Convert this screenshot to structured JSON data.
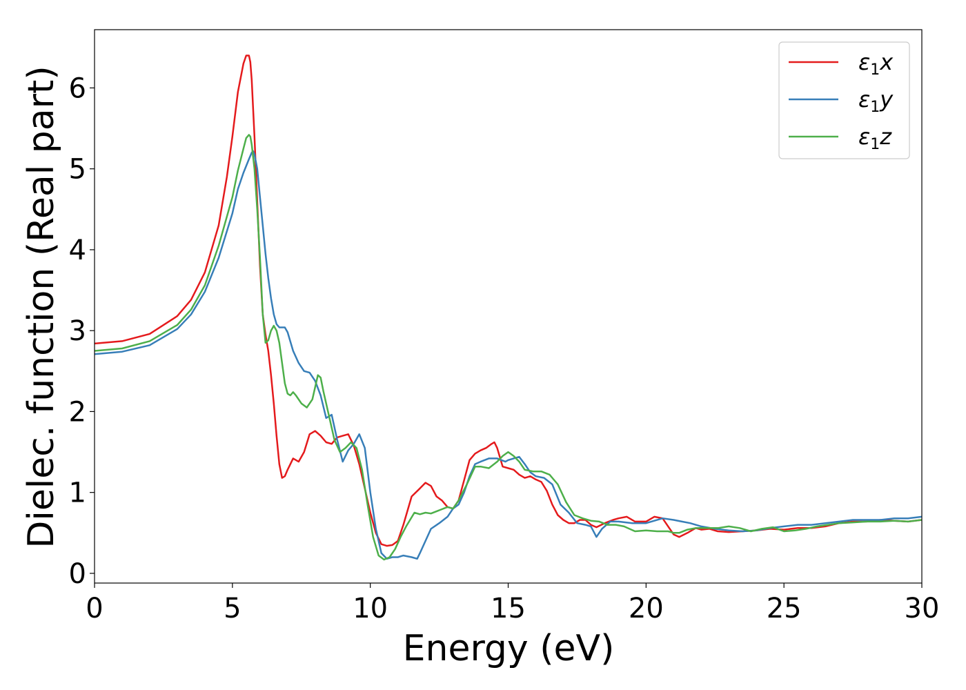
{
  "chart_data": {
    "type": "line",
    "title": "",
    "xlabel": "Energy (eV)",
    "ylabel": "Dielec. function (Real part)",
    "xlim": [
      0,
      30
    ],
    "ylim": [
      -0.12,
      6.72
    ],
    "xticks": [
      0,
      5,
      10,
      15,
      20,
      25,
      30
    ],
    "yticks": [
      0,
      1,
      2,
      3,
      4,
      5,
      6
    ],
    "grid": false,
    "legend_position": "top-right",
    "series": [
      {
        "name": "ε1x",
        "legend": {
          "base": "ε",
          "sub": "1",
          "var": "x"
        },
        "color": "#e41a1c",
        "x": [
          0,
          1,
          2,
          3,
          3.5,
          4,
          4.5,
          4.8,
          5.0,
          5.2,
          5.4,
          5.5,
          5.6,
          5.65,
          5.7,
          5.8,
          5.9,
          6.0,
          6.1,
          6.2,
          6.3,
          6.4,
          6.5,
          6.6,
          6.7,
          6.8,
          6.9,
          7.0,
          7.2,
          7.4,
          7.6,
          7.8,
          8.0,
          8.2,
          8.4,
          8.6,
          8.8,
          9.0,
          9.2,
          9.4,
          9.6,
          9.8,
          10.0,
          10.2,
          10.4,
          10.6,
          10.8,
          11.0,
          11.2,
          11.5,
          11.8,
          12.0,
          12.2,
          12.4,
          12.6,
          12.8,
          13.0,
          13.2,
          13.4,
          13.6,
          13.8,
          14.0,
          14.2,
          14.4,
          14.5,
          14.6,
          14.8,
          15.0,
          15.2,
          15.4,
          15.6,
          15.8,
          16.0,
          16.2,
          16.4,
          16.6,
          16.8,
          17.0,
          17.2,
          17.4,
          17.6,
          17.8,
          18.0,
          18.2,
          18.5,
          18.8,
          19.0,
          19.3,
          19.6,
          20.0,
          20.3,
          20.6,
          20.8,
          21.0,
          21.2,
          21.5,
          21.8,
          22.0,
          22.3,
          22.6,
          23.0,
          23.5,
          24.0,
          24.5,
          25.0,
          25.5,
          26.0,
          26.5,
          27.0,
          27.5,
          28.0,
          28.5,
          29.0,
          29.5,
          30.0
        ],
        "y": [
          2.84,
          2.87,
          2.96,
          3.18,
          3.38,
          3.72,
          4.3,
          4.9,
          5.4,
          5.95,
          6.3,
          6.4,
          6.4,
          6.32,
          6.1,
          5.4,
          4.6,
          3.8,
          3.2,
          2.95,
          2.75,
          2.45,
          2.1,
          1.7,
          1.35,
          1.18,
          1.2,
          1.28,
          1.42,
          1.38,
          1.5,
          1.72,
          1.76,
          1.7,
          1.62,
          1.6,
          1.68,
          1.7,
          1.72,
          1.58,
          1.35,
          1.05,
          0.75,
          0.5,
          0.36,
          0.34,
          0.35,
          0.4,
          0.6,
          0.95,
          1.05,
          1.12,
          1.08,
          0.95,
          0.9,
          0.82,
          0.8,
          0.9,
          1.15,
          1.4,
          1.48,
          1.52,
          1.55,
          1.6,
          1.62,
          1.55,
          1.32,
          1.3,
          1.28,
          1.22,
          1.18,
          1.2,
          1.16,
          1.13,
          1.02,
          0.85,
          0.72,
          0.66,
          0.62,
          0.62,
          0.66,
          0.66,
          0.6,
          0.57,
          0.62,
          0.66,
          0.68,
          0.7,
          0.64,
          0.64,
          0.7,
          0.68,
          0.58,
          0.48,
          0.45,
          0.5,
          0.56,
          0.54,
          0.55,
          0.52,
          0.51,
          0.52,
          0.53,
          0.55,
          0.54,
          0.56,
          0.56,
          0.58,
          0.62,
          0.64,
          0.64,
          0.66,
          0.65,
          0.64,
          0.66
        ]
      },
      {
        "name": "ε1y",
        "legend": {
          "base": "ε",
          "sub": "1",
          "var": "y"
        },
        "color": "#377eb8",
        "x": [
          0,
          1,
          2,
          3,
          3.5,
          4,
          4.5,
          5.0,
          5.2,
          5.4,
          5.6,
          5.7,
          5.75,
          5.8,
          5.9,
          6.0,
          6.1,
          6.2,
          6.3,
          6.4,
          6.5,
          6.6,
          6.7,
          6.8,
          6.9,
          7.0,
          7.2,
          7.4,
          7.6,
          7.8,
          8.0,
          8.2,
          8.4,
          8.6,
          8.8,
          9.0,
          9.2,
          9.4,
          9.6,
          9.8,
          10.0,
          10.2,
          10.4,
          10.6,
          10.8,
          11.0,
          11.2,
          11.5,
          11.7,
          11.8,
          12.0,
          12.2,
          12.5,
          12.8,
          13.0,
          13.2,
          13.4,
          13.6,
          13.8,
          14.0,
          14.3,
          14.6,
          14.9,
          15.0,
          15.2,
          15.4,
          15.6,
          15.8,
          16.0,
          16.3,
          16.6,
          16.9,
          17.2,
          17.5,
          17.8,
          18.0,
          18.2,
          18.4,
          18.7,
          19.0,
          19.5,
          20.0,
          20.3,
          20.6,
          21.0,
          21.3,
          21.6,
          22.0,
          22.5,
          23.0,
          23.5,
          24.0,
          24.5,
          25.0,
          25.5,
          26.0,
          26.5,
          27.0,
          27.5,
          28.0,
          28.5,
          29.0,
          29.5,
          30.0
        ],
        "y": [
          2.71,
          2.74,
          2.82,
          3.02,
          3.2,
          3.48,
          3.9,
          4.45,
          4.75,
          4.95,
          5.12,
          5.2,
          5.22,
          5.18,
          5.0,
          4.65,
          4.3,
          3.95,
          3.65,
          3.4,
          3.2,
          3.08,
          3.04,
          3.04,
          3.04,
          2.98,
          2.75,
          2.6,
          2.5,
          2.48,
          2.38,
          2.2,
          1.92,
          1.96,
          1.65,
          1.38,
          1.52,
          1.6,
          1.72,
          1.55,
          1.0,
          0.55,
          0.25,
          0.18,
          0.2,
          0.2,
          0.22,
          0.2,
          0.18,
          0.25,
          0.4,
          0.55,
          0.62,
          0.7,
          0.8,
          0.85,
          1.0,
          1.2,
          1.35,
          1.38,
          1.42,
          1.42,
          1.38,
          1.4,
          1.42,
          1.44,
          1.35,
          1.25,
          1.2,
          1.18,
          1.1,
          0.85,
          0.75,
          0.62,
          0.6,
          0.58,
          0.45,
          0.55,
          0.64,
          0.64,
          0.62,
          0.62,
          0.65,
          0.68,
          0.66,
          0.64,
          0.62,
          0.58,
          0.55,
          0.53,
          0.52,
          0.53,
          0.56,
          0.58,
          0.6,
          0.6,
          0.62,
          0.64,
          0.66,
          0.66,
          0.66,
          0.68,
          0.68,
          0.7
        ]
      },
      {
        "name": "ε1z",
        "legend": {
          "base": "ε",
          "sub": "1",
          "var": "z"
        },
        "color": "#4daf4a",
        "x": [
          0,
          1,
          2,
          3,
          3.5,
          4,
          4.5,
          5.0,
          5.2,
          5.4,
          5.5,
          5.6,
          5.65,
          5.7,
          5.8,
          5.9,
          6.0,
          6.1,
          6.2,
          6.3,
          6.4,
          6.5,
          6.6,
          6.7,
          6.8,
          6.9,
          7.0,
          7.1,
          7.2,
          7.3,
          7.5,
          7.7,
          7.9,
          8.1,
          8.2,
          8.3,
          8.5,
          8.7,
          8.9,
          9.1,
          9.3,
          9.5,
          9.7,
          9.9,
          10.1,
          10.3,
          10.5,
          10.7,
          10.9,
          11.1,
          11.3,
          11.6,
          11.8,
          12.0,
          12.2,
          12.5,
          12.8,
          13.0,
          13.2,
          13.5,
          13.8,
          14.0,
          14.3,
          14.6,
          14.8,
          15.0,
          15.2,
          15.4,
          15.6,
          15.9,
          16.2,
          16.5,
          16.8,
          17.1,
          17.4,
          17.7,
          18.0,
          18.3,
          18.6,
          18.9,
          19.2,
          19.6,
          20.0,
          20.4,
          20.8,
          21.0,
          21.2,
          21.5,
          21.8,
          22.2,
          22.6,
          23.0,
          23.4,
          23.8,
          24.2,
          24.6,
          25.0,
          25.4,
          25.8,
          26.2,
          26.6,
          27.0,
          27.5,
          28.0,
          28.5,
          29.0,
          29.5,
          30.0
        ],
        "y": [
          2.75,
          2.78,
          2.87,
          3.07,
          3.26,
          3.56,
          4.05,
          4.65,
          4.98,
          5.25,
          5.38,
          5.42,
          5.4,
          5.3,
          5.0,
          4.5,
          3.9,
          3.2,
          2.85,
          2.88,
          3.0,
          3.06,
          3.0,
          2.85,
          2.6,
          2.35,
          2.22,
          2.2,
          2.24,
          2.2,
          2.1,
          2.05,
          2.15,
          2.45,
          2.42,
          2.25,
          1.95,
          1.65,
          1.5,
          1.55,
          1.62,
          1.55,
          1.28,
          0.85,
          0.45,
          0.22,
          0.17,
          0.2,
          0.3,
          0.45,
          0.58,
          0.75,
          0.73,
          0.75,
          0.74,
          0.78,
          0.82,
          0.8,
          0.9,
          1.1,
          1.32,
          1.32,
          1.3,
          1.38,
          1.45,
          1.5,
          1.45,
          1.38,
          1.28,
          1.26,
          1.26,
          1.22,
          1.1,
          0.88,
          0.72,
          0.68,
          0.65,
          0.64,
          0.6,
          0.6,
          0.58,
          0.52,
          0.53,
          0.52,
          0.52,
          0.5,
          0.5,
          0.54,
          0.56,
          0.56,
          0.56,
          0.58,
          0.56,
          0.52,
          0.55,
          0.57,
          0.52,
          0.53,
          0.55,
          0.58,
          0.6,
          0.62,
          0.63,
          0.64,
          0.64,
          0.65,
          0.64,
          0.66
        ]
      }
    ]
  }
}
